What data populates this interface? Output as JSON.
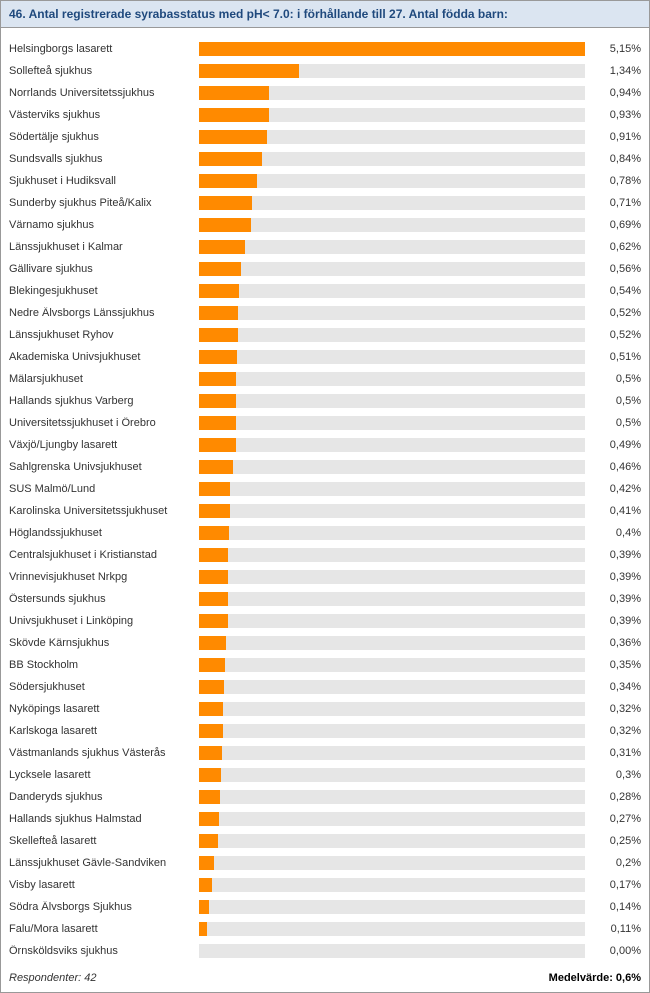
{
  "title": "46. Antal registrerade syrabasstatus med pH< 7.0: i förhållande till 27. Antal födda barn:",
  "chart": {
    "type": "bar-horizontal",
    "bar_color": "#ff8a00",
    "track_color": "#e6e6e6",
    "background_color": "#ffffff",
    "header_bg": "#dbe5f1",
    "header_text_color": "#1f497d",
    "label_fontsize": 11,
    "value_fontsize": 11,
    "title_fontsize": 12,
    "max_value_pct": 5.15,
    "rows": [
      {
        "label": "Helsingborgs lasarett",
        "value": 5.15,
        "display": "5,15%"
      },
      {
        "label": "Sollefteå sjukhus",
        "value": 1.34,
        "display": "1,34%"
      },
      {
        "label": "Norrlands Universitetssjukhus",
        "value": 0.94,
        "display": "0,94%"
      },
      {
        "label": "Västerviks sjukhus",
        "value": 0.93,
        "display": "0,93%"
      },
      {
        "label": "Södertälje sjukhus",
        "value": 0.91,
        "display": "0,91%"
      },
      {
        "label": "Sundsvalls sjukhus",
        "value": 0.84,
        "display": "0,84%"
      },
      {
        "label": "Sjukhuset i Hudiksvall",
        "value": 0.78,
        "display": "0,78%"
      },
      {
        "label": "Sunderby sjukhus Piteå/Kalix",
        "value": 0.71,
        "display": "0,71%"
      },
      {
        "label": "Värnamo sjukhus",
        "value": 0.69,
        "display": "0,69%"
      },
      {
        "label": "Länssjukhuset i Kalmar",
        "value": 0.62,
        "display": "0,62%"
      },
      {
        "label": "Gällivare sjukhus",
        "value": 0.56,
        "display": "0,56%"
      },
      {
        "label": "Blekingesjukhuset",
        "value": 0.54,
        "display": "0,54%"
      },
      {
        "label": "Nedre Älvsborgs Länssjukhus",
        "value": 0.52,
        "display": "0,52%"
      },
      {
        "label": "Länssjukhuset Ryhov",
        "value": 0.52,
        "display": "0,52%"
      },
      {
        "label": "Akademiska Univsjukhuset",
        "value": 0.51,
        "display": "0,51%"
      },
      {
        "label": "Mälarsjukhuset",
        "value": 0.5,
        "display": "0,5%"
      },
      {
        "label": "Hallands sjukhus Varberg",
        "value": 0.5,
        "display": "0,5%"
      },
      {
        "label": "Universitetssjukhuset i Örebro",
        "value": 0.5,
        "display": "0,5%"
      },
      {
        "label": "Växjö/Ljungby lasarett",
        "value": 0.49,
        "display": "0,49%"
      },
      {
        "label": "Sahlgrenska Univsjukhuset",
        "value": 0.46,
        "display": "0,46%"
      },
      {
        "label": "SUS Malmö/Lund",
        "value": 0.42,
        "display": "0,42%"
      },
      {
        "label": "Karolinska Universitetssjukhuset",
        "value": 0.41,
        "display": "0,41%"
      },
      {
        "label": "Höglandssjukhuset",
        "value": 0.4,
        "display": "0,4%"
      },
      {
        "label": "Centralsjukhuset i Kristianstad",
        "value": 0.39,
        "display": "0,39%"
      },
      {
        "label": "Vrinnevisjukhuset Nrkpg",
        "value": 0.39,
        "display": "0,39%"
      },
      {
        "label": "Östersunds sjukhus",
        "value": 0.39,
        "display": "0,39%"
      },
      {
        "label": "Univsjukhuset i Linköping",
        "value": 0.39,
        "display": "0,39%"
      },
      {
        "label": "Skövde Kärnsjukhus",
        "value": 0.36,
        "display": "0,36%"
      },
      {
        "label": "BB Stockholm",
        "value": 0.35,
        "display": "0,35%"
      },
      {
        "label": "Södersjukhuset",
        "value": 0.34,
        "display": "0,34%"
      },
      {
        "label": "Nyköpings lasarett",
        "value": 0.32,
        "display": "0,32%"
      },
      {
        "label": "Karlskoga lasarett",
        "value": 0.32,
        "display": "0,32%"
      },
      {
        "label": "Västmanlands sjukhus Västerås",
        "value": 0.31,
        "display": "0,31%"
      },
      {
        "label": "Lycksele lasarett",
        "value": 0.3,
        "display": "0,3%"
      },
      {
        "label": "Danderyds sjukhus",
        "value": 0.28,
        "display": "0,28%"
      },
      {
        "label": "Hallands sjukhus Halmstad",
        "value": 0.27,
        "display": "0,27%"
      },
      {
        "label": "Skellefteå lasarett",
        "value": 0.25,
        "display": "0,25%"
      },
      {
        "label": "Länssjukhuset Gävle-Sandviken",
        "value": 0.2,
        "display": "0,2%"
      },
      {
        "label": "Visby lasarett",
        "value": 0.17,
        "display": "0,17%"
      },
      {
        "label": "Södra Älvsborgs Sjukhus",
        "value": 0.14,
        "display": "0,14%"
      },
      {
        "label": "Falu/Mora lasarett",
        "value": 0.11,
        "display": "0,11%"
      },
      {
        "label": "Örnsköldsviks sjukhus",
        "value": 0.0,
        "display": "0,00%"
      }
    ]
  },
  "footer": {
    "respondents_label": "Respondenter: 42",
    "mean_label": "Medelvärde: 0,6%"
  }
}
